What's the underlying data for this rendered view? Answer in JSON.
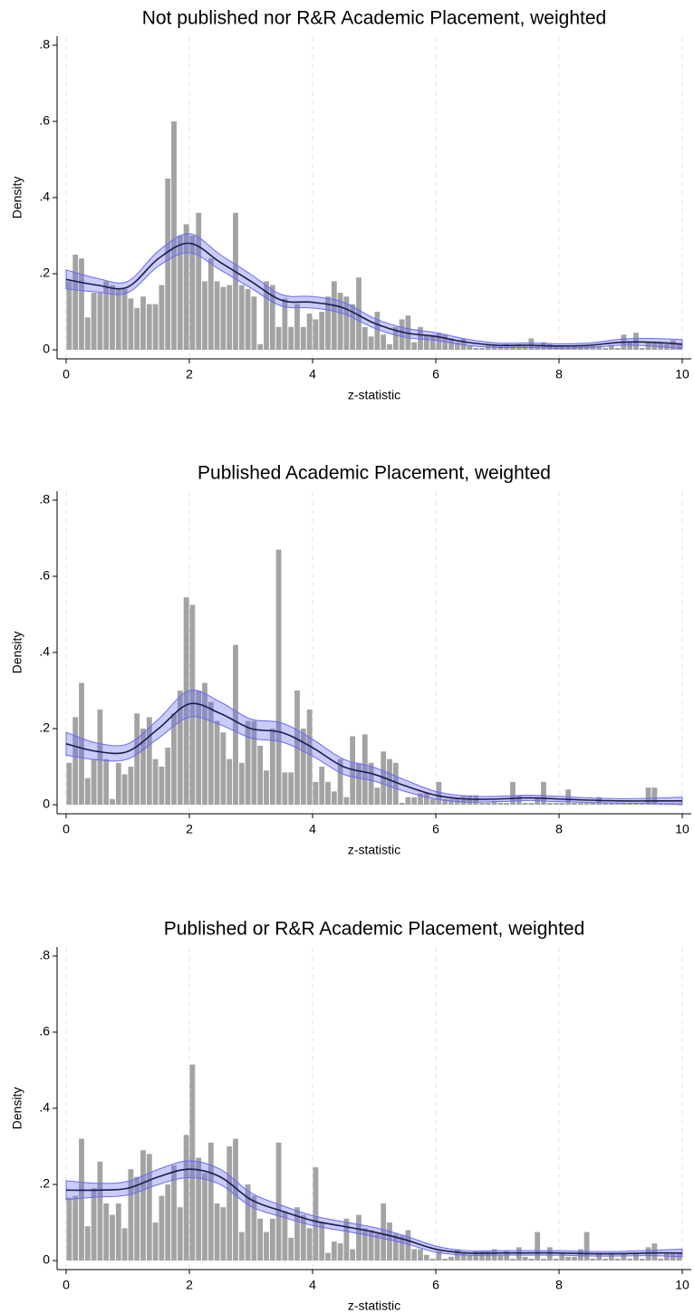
{
  "chart_data": [
    {
      "type": "histogram",
      "title": "Not published nor R&R Academic Placement, weighted",
      "x_label": "z-statistic",
      "y_label": "Density",
      "bins": [
        0,
        0.1,
        0.2,
        0.3,
        0.4,
        0.5,
        0.6,
        0.7,
        0.8,
        0.9,
        1,
        1.1,
        1.2,
        1.3,
        1.4,
        1.5,
        1.6,
        1.7,
        1.8,
        1.9,
        2,
        2.1,
        2.2,
        2.3,
        2.4,
        2.5,
        2.6,
        2.7,
        2.8,
        2.9,
        3,
        3.1,
        3.2,
        3.3,
        3.4,
        3.5,
        3.6,
        3.7,
        3.8,
        3.9,
        4,
        4.1,
        4.2,
        4.3,
        4.4,
        4.5,
        4.6,
        4.7,
        4.8,
        4.9,
        5,
        5.1,
        5.2,
        5.3,
        5.4,
        5.5,
        5.6,
        5.7,
        5.8,
        5.9,
        6,
        6.1,
        6.2,
        6.3,
        6.4,
        6.5,
        6.6,
        6.7,
        6.8,
        6.9,
        7,
        7.1,
        7.2,
        7.3,
        7.4,
        7.5,
        7.6,
        7.7,
        7.8,
        7.9,
        8,
        8.1,
        8.2,
        8.3,
        8.4,
        8.5,
        8.6,
        8.7,
        8.8,
        8.9,
        9,
        9.1,
        9.2,
        9.3,
        9.4,
        9.5,
        9.6,
        9.7,
        9.8,
        9.9,
        10
      ],
      "values": [
        0.18,
        0.25,
        0.24,
        0.085,
        0.15,
        0.15,
        0.18,
        0.17,
        0.16,
        0.16,
        0.135,
        0.11,
        0.14,
        0.12,
        0.12,
        0.17,
        0.45,
        0.6,
        0.3,
        0.33,
        0.3,
        0.36,
        0.18,
        0.24,
        0.18,
        0.165,
        0.17,
        0.36,
        0.17,
        0.16,
        0.14,
        0.015,
        0.18,
        0.17,
        0.06,
        0.135,
        0.06,
        0.12,
        0.06,
        0.095,
        0.08,
        0.1,
        0.14,
        0.18,
        0.15,
        0.14,
        0.12,
        0.19,
        0.06,
        0.035,
        0.1,
        0.04,
        0.015,
        0.06,
        0.08,
        0.09,
        0.02,
        0.06,
        0.04,
        0.04,
        0.045,
        0.04,
        0.03,
        0.02,
        0.03,
        0.01,
        0.005,
        0.005,
        0.015,
        0.015,
        0.01,
        0.015,
        0.01,
        0.015,
        0.01,
        0.03,
        0.01,
        0.02,
        0.015,
        0.01,
        0.01,
        0.01,
        0.01,
        0.01,
        0.01,
        0.01,
        0.01,
        0.005,
        0.01,
        0.005,
        0.04,
        0.02,
        0.045,
        0.005,
        0.02,
        0.02,
        0.02,
        0.015,
        0.025,
        0.015
      ],
      "color": "#a3a3a3",
      "density": {
        "x": [
          0,
          0.5,
          1,
          1.5,
          2,
          2.5,
          3,
          3.5,
          4,
          4.5,
          5,
          5.5,
          6,
          6.5,
          7,
          7.5,
          8,
          8.5,
          9,
          9.5,
          10
        ],
        "values": [
          0.185,
          0.17,
          0.165,
          0.24,
          0.28,
          0.23,
          0.18,
          0.13,
          0.125,
          0.11,
          0.07,
          0.045,
          0.035,
          0.02,
          0.012,
          0.012,
          0.01,
          0.012,
          0.02,
          0.02,
          0.015
        ],
        "lower": [
          0.16,
          0.152,
          0.15,
          0.22,
          0.255,
          0.21,
          0.162,
          0.115,
          0.11,
          0.095,
          0.057,
          0.033,
          0.025,
          0.012,
          0.006,
          0.006,
          0.004,
          0.006,
          0.012,
          0.01,
          0.003
        ],
        "upper": [
          0.21,
          0.188,
          0.18,
          0.26,
          0.305,
          0.25,
          0.198,
          0.145,
          0.14,
          0.125,
          0.083,
          0.057,
          0.045,
          0.028,
          0.018,
          0.018,
          0.016,
          0.018,
          0.028,
          0.03,
          0.027
        ],
        "color": "#1c1c4a",
        "band_color": "#6b6bf0"
      },
      "xlim": [
        -0.147,
        10.147
      ],
      "xticks": [
        0,
        2,
        4,
        6,
        8,
        10
      ],
      "ylim": [
        -0.0237,
        0.8237
      ],
      "yticks": [
        0,
        {
          "value": 0.2,
          "label": ".2"
        },
        {
          "value": 0.4,
          "label": ".4"
        },
        {
          "value": 0.6,
          "label": ".6"
        },
        {
          "value": 0.8,
          "label": ".8"
        }
      ],
      "grid": "x"
    },
    {
      "type": "histogram",
      "title": "Published Academic Placement, weighted",
      "x_label": "z-statistic",
      "y_label": "Density",
      "bins": [
        0,
        0.1,
        0.2,
        0.3,
        0.4,
        0.5,
        0.6,
        0.7,
        0.8,
        0.9,
        1,
        1.1,
        1.2,
        1.3,
        1.4,
        1.5,
        1.6,
        1.7,
        1.8,
        1.9,
        2,
        2.1,
        2.2,
        2.3,
        2.4,
        2.5,
        2.6,
        2.7,
        2.8,
        2.9,
        3,
        3.1,
        3.2,
        3.3,
        3.4,
        3.5,
        3.6,
        3.7,
        3.8,
        3.9,
        4,
        4.1,
        4.2,
        4.3,
        4.4,
        4.5,
        4.6,
        4.7,
        4.8,
        4.9,
        5,
        5.1,
        5.2,
        5.3,
        5.4,
        5.5,
        5.6,
        5.7,
        5.8,
        5.9,
        6,
        6.1,
        6.2,
        6.3,
        6.4,
        6.5,
        6.6,
        6.7,
        6.8,
        6.9,
        7,
        7.1,
        7.2,
        7.3,
        7.4,
        7.5,
        7.6,
        7.7,
        7.8,
        7.9,
        8,
        8.1,
        8.2,
        8.3,
        8.4,
        8.5,
        8.6,
        8.7,
        8.8,
        8.9,
        9,
        9.1,
        9.2,
        9.3,
        9.4,
        9.5,
        9.6,
        9.7,
        9.8,
        9.9,
        10
      ],
      "values": [
        0.11,
        0.23,
        0.32,
        0.07,
        0.12,
        0.25,
        0.12,
        0.015,
        0.11,
        0.08,
        0.1,
        0.24,
        0.2,
        0.23,
        0.12,
        0.1,
        0.15,
        0.24,
        0.3,
        0.545,
        0.525,
        0.3,
        0.32,
        0.27,
        0.22,
        0.19,
        0.12,
        0.42,
        0.11,
        0.22,
        0.22,
        0.155,
        0.09,
        0.2,
        0.67,
        0.085,
        0.085,
        0.3,
        0.2,
        0.25,
        0.06,
        0.1,
        0.06,
        0.035,
        0.12,
        0.02,
        0.18,
        0.11,
        0.185,
        0.11,
        0.045,
        0.14,
        0.12,
        0.11,
        0.005,
        0.02,
        0.02,
        0.03,
        0.03,
        0.015,
        0.06,
        0.015,
        0.015,
        0.015,
        0.025,
        0.025,
        0.025,
        0.005,
        0.005,
        0.01,
        0.005,
        0.005,
        0.06,
        0.025,
        0.005,
        0.005,
        0.02,
        0.06,
        0.005,
        0.005,
        0.005,
        0.04,
        0.005,
        0.005,
        0.005,
        0.005,
        0.02,
        0.005,
        0.005,
        0.005,
        0.005,
        0.005,
        0.005,
        0.005,
        0.045,
        0.045,
        0.005,
        0.005,
        0.005,
        0.005
      ],
      "color": "#a3a3a3",
      "density": {
        "x": [
          0,
          0.5,
          1,
          1.5,
          2,
          2.5,
          3,
          3.5,
          4,
          4.5,
          5,
          5.5,
          6,
          6.5,
          7,
          7.5,
          8,
          8.5,
          9,
          9.5,
          10
        ],
        "values": [
          0.16,
          0.14,
          0.14,
          0.2,
          0.265,
          0.24,
          0.2,
          0.19,
          0.15,
          0.1,
          0.08,
          0.05,
          0.025,
          0.015,
          0.015,
          0.018,
          0.015,
          0.012,
          0.01,
          0.01,
          0.01
        ],
        "lower": [
          0.13,
          0.118,
          0.12,
          0.175,
          0.23,
          0.21,
          0.175,
          0.165,
          0.128,
          0.08,
          0.062,
          0.035,
          0.015,
          0.007,
          0.008,
          0.011,
          0.008,
          0.006,
          0.004,
          0.003,
          0.0
        ],
        "upper": [
          0.19,
          0.162,
          0.16,
          0.225,
          0.3,
          0.27,
          0.225,
          0.215,
          0.172,
          0.12,
          0.098,
          0.065,
          0.035,
          0.023,
          0.022,
          0.025,
          0.022,
          0.018,
          0.016,
          0.017,
          0.02
        ],
        "color": "#1c1c4a",
        "band_color": "#6b6bf0"
      },
      "xlim": [
        -0.147,
        10.147
      ],
      "xticks": [
        0,
        2,
        4,
        6,
        8,
        10
      ],
      "ylim": [
        -0.0237,
        0.8237
      ],
      "yticks": [
        0,
        {
          "value": 0.2,
          "label": ".2"
        },
        {
          "value": 0.4,
          "label": ".4"
        },
        {
          "value": 0.6,
          "label": ".6"
        },
        {
          "value": 0.8,
          "label": ".8"
        }
      ],
      "grid": "x"
    },
    {
      "type": "histogram",
      "title": "Published or R&R Academic Placement, weighted",
      "x_label": "z-statistic",
      "y_label": "Density",
      "bins": [
        0,
        0.1,
        0.2,
        0.3,
        0.4,
        0.5,
        0.6,
        0.7,
        0.8,
        0.9,
        1,
        1.1,
        1.2,
        1.3,
        1.4,
        1.5,
        1.6,
        1.7,
        1.8,
        1.9,
        2,
        2.1,
        2.2,
        2.3,
        2.4,
        2.5,
        2.6,
        2.7,
        2.8,
        2.9,
        3,
        3.1,
        3.2,
        3.3,
        3.4,
        3.5,
        3.6,
        3.7,
        3.8,
        3.9,
        4,
        4.1,
        4.2,
        4.3,
        4.4,
        4.5,
        4.6,
        4.7,
        4.8,
        4.9,
        5,
        5.1,
        5.2,
        5.3,
        5.4,
        5.5,
        5.6,
        5.7,
        5.8,
        5.9,
        6,
        6.1,
        6.2,
        6.3,
        6.4,
        6.5,
        6.6,
        6.7,
        6.8,
        6.9,
        7,
        7.1,
        7.2,
        7.3,
        7.4,
        7.5,
        7.6,
        7.7,
        7.8,
        7.9,
        8,
        8.1,
        8.2,
        8.3,
        8.4,
        8.5,
        8.6,
        8.7,
        8.8,
        8.9,
        9,
        9.1,
        9.2,
        9.3,
        9.4,
        9.5,
        9.6,
        9.7,
        9.8,
        9.9,
        10
      ],
      "values": [
        0.165,
        0.17,
        0.32,
        0.09,
        0.19,
        0.26,
        0.15,
        0.12,
        0.15,
        0.085,
        0.24,
        0.22,
        0.29,
        0.28,
        0.1,
        0.17,
        0.2,
        0.25,
        0.14,
        0.33,
        0.515,
        0.27,
        0.23,
        0.31,
        0.15,
        0.14,
        0.3,
        0.32,
        0.075,
        0.2,
        0.17,
        0.11,
        0.075,
        0.11,
        0.31,
        0.13,
        0.06,
        0.14,
        0.12,
        0.085,
        0.245,
        0.1,
        0.02,
        0.05,
        0.045,
        0.11,
        0.03,
        0.12,
        0.085,
        0.08,
        0.07,
        0.15,
        0.1,
        0.07,
        0.065,
        0.08,
        0.03,
        0.03,
        0.015,
        0.005,
        0.025,
        0.005,
        0.01,
        0.03,
        0.02,
        0.015,
        0.025,
        0.025,
        0.025,
        0.03,
        0.015,
        0.025,
        0.005,
        0.035,
        0.01,
        0.005,
        0.075,
        0.005,
        0.035,
        0.005,
        0.02,
        0.01,
        0.01,
        0.03,
        0.075,
        0.005,
        0.02,
        0.005,
        0.02,
        0.005,
        0.02,
        0.005,
        0.02,
        0.005,
        0.035,
        0.045,
        0.005,
        0.02,
        0.02,
        0.02
      ],
      "color": "#a3a3a3",
      "density": {
        "x": [
          0,
          0.5,
          1,
          1.5,
          2,
          2.5,
          3,
          3.5,
          4,
          4.5,
          5,
          5.5,
          6,
          6.5,
          7,
          7.5,
          8,
          8.5,
          9,
          9.5,
          10
        ],
        "values": [
          0.185,
          0.185,
          0.19,
          0.22,
          0.24,
          0.22,
          0.16,
          0.13,
          0.105,
          0.09,
          0.075,
          0.055,
          0.03,
          0.02,
          0.02,
          0.02,
          0.02,
          0.018,
          0.018,
          0.02,
          0.02
        ],
        "lower": [
          0.16,
          0.167,
          0.172,
          0.2,
          0.218,
          0.2,
          0.142,
          0.115,
          0.092,
          0.078,
          0.063,
          0.045,
          0.022,
          0.014,
          0.014,
          0.014,
          0.014,
          0.012,
          0.012,
          0.013,
          0.01
        ],
        "upper": [
          0.21,
          0.203,
          0.208,
          0.24,
          0.262,
          0.24,
          0.178,
          0.145,
          0.118,
          0.102,
          0.087,
          0.065,
          0.038,
          0.026,
          0.026,
          0.026,
          0.026,
          0.024,
          0.024,
          0.027,
          0.03
        ],
        "color": "#1c1c4a",
        "band_color": "#6b6bf0"
      },
      "xlim": [
        -0.147,
        10.147
      ],
      "xticks": [
        0,
        2,
        4,
        6,
        8,
        10
      ],
      "ylim": [
        -0.0237,
        0.8237
      ],
      "yticks": [
        0,
        {
          "value": 0.2,
          "label": ".2"
        },
        {
          "value": 0.4,
          "label": ".4"
        },
        {
          "value": 0.6,
          "label": ".6"
        },
        {
          "value": 0.8,
          "label": ".8"
        }
      ],
      "grid": "x"
    }
  ]
}
